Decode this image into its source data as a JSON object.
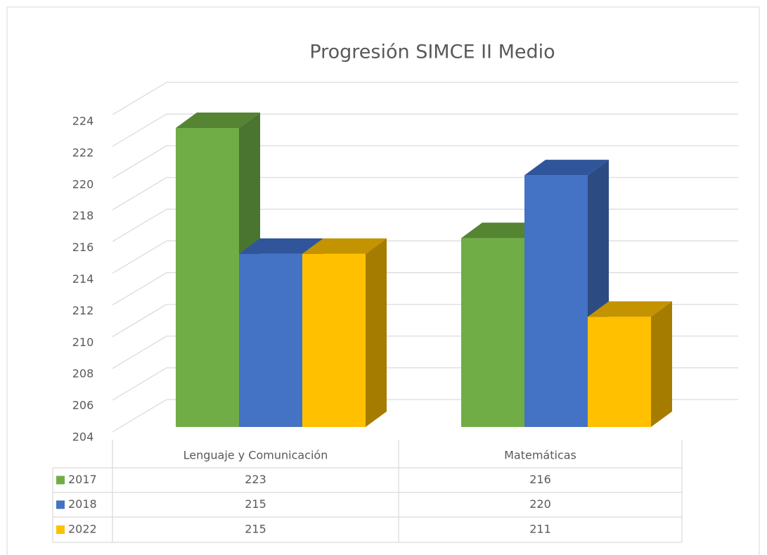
{
  "chart_data": {
    "type": "bar3d",
    "title": "Progresión SIMCE II Medio",
    "categories": [
      "Lenguaje y Comunicación",
      "Matemáticas"
    ],
    "series": [
      {
        "name": "2017",
        "color": "#70ad47",
        "side": "#4a7530",
        "top": "#558433",
        "values": [
          223,
          216
        ]
      },
      {
        "name": "2018",
        "color": "#4472c4",
        "side": "#2c4b82",
        "top": "#30559a",
        "values": [
          215,
          220
        ]
      },
      {
        "name": "2022",
        "color": "#ffc000",
        "side": "#a67c00",
        "top": "#c49300",
        "values": [
          215,
          211
        ]
      }
    ],
    "ylim": [
      204,
      224
    ],
    "yticks": [
      204,
      206,
      208,
      210,
      212,
      214,
      216,
      218,
      220,
      222,
      224
    ],
    "grid": true,
    "data_table": true
  }
}
